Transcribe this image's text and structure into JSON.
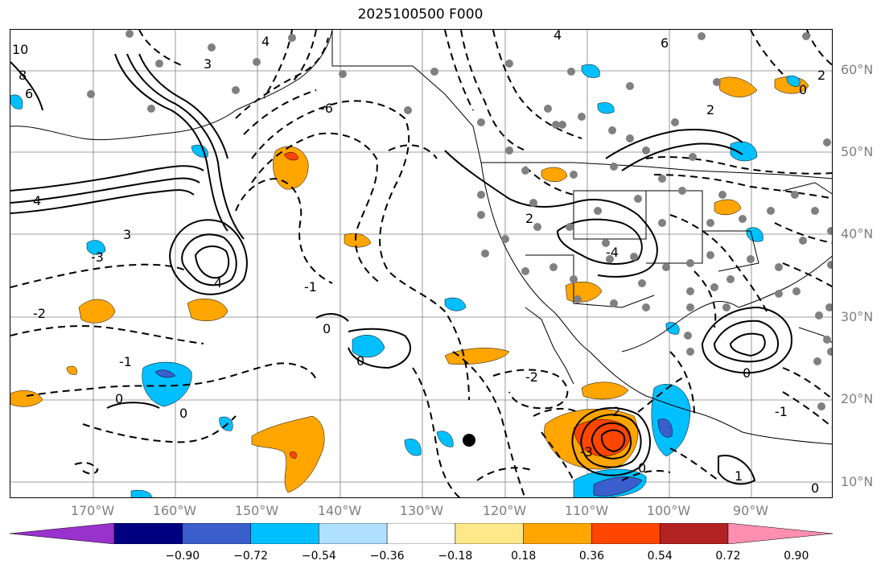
{
  "title": "2025100500 F000",
  "lat_labels": [
    "60°N",
    "50°N",
    "40°N",
    "30°N",
    "20°N",
    "10°N"
  ],
  "lon_labels": [
    "170°W",
    "160°W",
    "150°W",
    "140°W",
    "130°W",
    "120°W",
    "110°W",
    "100°W",
    "90°W"
  ],
  "colorbar": {
    "ticks": [
      "−0.90",
      "−0.72",
      "−0.54",
      "−0.36",
      "−0.18",
      "0.18",
      "0.36",
      "0.54",
      "0.72",
      "0.90"
    ],
    "colors": [
      "#9932cc",
      "#000080",
      "#3a5fcd",
      "#00bfff",
      "#b0e0ff",
      "#ffffff",
      "#ffe88a",
      "#ffa500",
      "#ff4500",
      "#b22222",
      "#ff8fb0"
    ]
  },
  "contour_labels": [
    "10",
    "8",
    "6",
    "4",
    "3",
    "2",
    "1",
    "0",
    "-1",
    "-2",
    "-3",
    "-4",
    "-6"
  ],
  "colors": {
    "land_station": "#808080",
    "grid": "#808080"
  }
}
